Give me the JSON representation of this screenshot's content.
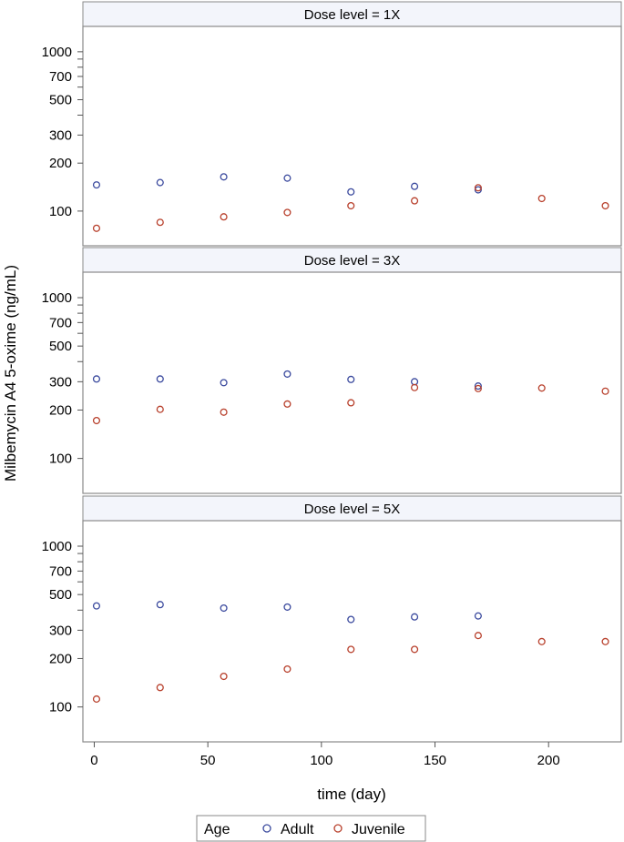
{
  "chart_data": {
    "type": "scatter",
    "layout": "vertical panels",
    "ylabel": "Milbemycin A4 5-oxime (ng/mL)",
    "xlabel": "time (day)",
    "y_scale": "log",
    "ylim": [
      70,
      1200
    ],
    "y_ticks": [
      100,
      200,
      300,
      500,
      700,
      1000
    ],
    "x_ticks": [
      0,
      50,
      100,
      150,
      200
    ],
    "xlim": [
      -5,
      232
    ],
    "grid": false,
    "legend": {
      "title": "Age",
      "placement": "bottom",
      "entries": [
        "Adult",
        "Juvenile"
      ]
    },
    "colors": {
      "Adult": "#3b4a9e",
      "Juvenile": "#b8402c"
    },
    "panels": [
      {
        "title": "Dose level = 1X",
        "series": [
          {
            "name": "Adult",
            "x": [
              1,
              29,
              57,
              85,
              113,
              141,
              169
            ],
            "y": [
              146,
              151,
              164,
              161,
              132,
              143,
              136
            ]
          },
          {
            "name": "Juvenile",
            "x": [
              1,
              29,
              57,
              85,
              113,
              141,
              169,
              197,
              225
            ],
            "y": [
              78,
              85,
              92,
              98,
              108,
              116,
              140,
              120,
              108
            ]
          }
        ]
      },
      {
        "title": "Dose level = 3X",
        "series": [
          {
            "name": "Adult",
            "x": [
              1,
              29,
              57,
              85,
              113,
              141,
              169
            ],
            "y": [
              312,
              312,
              296,
              335,
              310,
              300,
              282
            ]
          },
          {
            "name": "Juvenile",
            "x": [
              1,
              29,
              57,
              85,
              113,
              141,
              169,
              197,
              225
            ],
            "y": [
              172,
              202,
              194,
              218,
              222,
              276,
              272,
              274,
              262
            ]
          }
        ]
      },
      {
        "title": "Dose level = 5X",
        "series": [
          {
            "name": "Adult",
            "x": [
              1,
              29,
              57,
              85,
              113,
              141,
              169
            ],
            "y": [
              425,
              433,
              412,
              418,
              350,
              363,
              368
            ]
          },
          {
            "name": "Juvenile",
            "x": [
              1,
              29,
              57,
              85,
              113,
              141,
              169,
              197,
              225
            ],
            "y": [
              112,
              132,
              155,
              172,
              228,
              228,
              278,
              255,
              255
            ]
          }
        ]
      }
    ]
  }
}
